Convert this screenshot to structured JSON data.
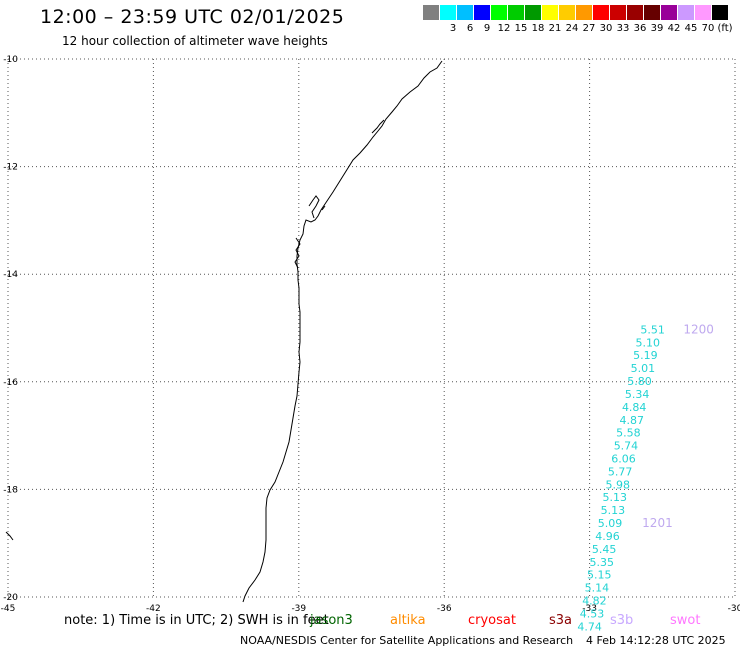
{
  "header": {
    "title": "12:00 – 23:59 UTC 02/01/2025",
    "subtitle": "12 hour collection of altimeter wave heights"
  },
  "legend": {
    "unit": "(ft)",
    "bins": [
      {
        "label": "",
        "color": "#808080"
      },
      {
        "label": "3",
        "color": "#00ffff"
      },
      {
        "label": "6",
        "color": "#00bfff"
      },
      {
        "label": "9",
        "color": "#0000ff"
      },
      {
        "label": "12",
        "color": "#00ff00"
      },
      {
        "label": "15",
        "color": "#00cc00"
      },
      {
        "label": "18",
        "color": "#009900"
      },
      {
        "label": "21",
        "color": "#ffff00"
      },
      {
        "label": "24",
        "color": "#ffcc00"
      },
      {
        "label": "27",
        "color": "#ff9900"
      },
      {
        "label": "30",
        "color": "#ff0000"
      },
      {
        "label": "33",
        "color": "#cc0000"
      },
      {
        "label": "36",
        "color": "#990000"
      },
      {
        "label": "39",
        "color": "#660000"
      },
      {
        "label": "42",
        "color": "#990099"
      },
      {
        "label": "45",
        "color": "#cc99ff"
      },
      {
        "label": "70",
        "color": "#ff99ff"
      },
      {
        "label": "",
        "color": "#000000"
      }
    ]
  },
  "map": {
    "lon_range": [
      -45,
      -30
    ],
    "lat_range": [
      -20,
      -10
    ],
    "lon_ticks": [
      {
        "value": -45,
        "label": "-45"
      },
      {
        "value": -42,
        "label": "-42"
      },
      {
        "value": -39,
        "label": "-39"
      },
      {
        "value": -36,
        "label": "-36"
      },
      {
        "value": -33,
        "label": "-33"
      },
      {
        "value": -30,
        "label": "-30"
      }
    ],
    "lat_ticks": [
      {
        "value": -10,
        "label": "-10"
      },
      {
        "value": -12,
        "label": "-12"
      },
      {
        "value": -14,
        "label": "-14"
      },
      {
        "value": -16,
        "label": "-16"
      },
      {
        "value": -18,
        "label": "-18"
      },
      {
        "value": -20,
        "label": "-20"
      }
    ],
    "grid_color": "#555555",
    "coast_color": "#000000"
  },
  "track": {
    "color": "#22d3d3",
    "points": [
      {
        "lon": -31.7,
        "lat": -15.1,
        "swh": "5.51"
      },
      {
        "lon": -31.8,
        "lat": -15.34,
        "swh": "5.10"
      },
      {
        "lon": -31.85,
        "lat": -15.58,
        "swh": "5.19"
      },
      {
        "lon": -31.9,
        "lat": -15.82,
        "swh": "5.01"
      },
      {
        "lon": -31.97,
        "lat": -16.06,
        "swh": "5.80"
      },
      {
        "lon": -32.02,
        "lat": -16.3,
        "swh": "5.34"
      },
      {
        "lon": -32.08,
        "lat": -16.54,
        "swh": "4.84"
      },
      {
        "lon": -32.13,
        "lat": -16.78,
        "swh": "4.87"
      },
      {
        "lon": -32.2,
        "lat": -17.02,
        "swh": "5.58"
      },
      {
        "lon": -32.25,
        "lat": -17.26,
        "swh": "5.74"
      },
      {
        "lon": -32.3,
        "lat": -17.5,
        "swh": "6.06"
      },
      {
        "lon": -32.37,
        "lat": -17.74,
        "swh": "5.77"
      },
      {
        "lon": -32.42,
        "lat": -17.98,
        "swh": "5.98"
      },
      {
        "lon": -32.48,
        "lat": -18.22,
        "swh": "5.13"
      },
      {
        "lon": -32.52,
        "lat": -18.46,
        "swh": "5.13"
      },
      {
        "lon": -32.58,
        "lat": -18.7,
        "swh": "5.09"
      },
      {
        "lon": -32.63,
        "lat": -18.94,
        "swh": "4.96"
      },
      {
        "lon": -32.7,
        "lat": -19.18,
        "swh": "5.45"
      },
      {
        "lon": -32.75,
        "lat": -19.42,
        "swh": "5.35"
      },
      {
        "lon": -32.8,
        "lat": -19.66,
        "swh": "5.15"
      },
      {
        "lon": -32.85,
        "lat": -19.9,
        "swh": "5.14"
      },
      {
        "lon": -32.9,
        "lat": -20.14,
        "swh": "4.82"
      },
      {
        "lon": -32.95,
        "lat": -20.38,
        "swh": "4.53"
      },
      {
        "lon": -33.0,
        "lat": -20.62,
        "swh": "4.74"
      }
    ],
    "time_labels": [
      {
        "text": "1200",
        "lon": -30.75,
        "lat": -15.1
      },
      {
        "text": "1201",
        "lon": -31.6,
        "lat": -18.7
      }
    ]
  },
  "footer": {
    "note": "note: 1) Time is in UTC; 2) SWH is in feet",
    "satellites": [
      {
        "name": "jason3",
        "color": "#006400"
      },
      {
        "name": "altika",
        "color": "#ff8c00"
      },
      {
        "name": "cryosat",
        "color": "#ff0000"
      },
      {
        "name": "s3a",
        "color": "#8b0000"
      },
      {
        "name": "s3b",
        "color": "#c8a8ff"
      },
      {
        "name": "swot",
        "color": "#ff77ff"
      }
    ],
    "credit": "NOAA/NESDIS Center for Satellite Applications and Research",
    "timestamp": "4 Feb 14:12:28 UTC 2025"
  }
}
